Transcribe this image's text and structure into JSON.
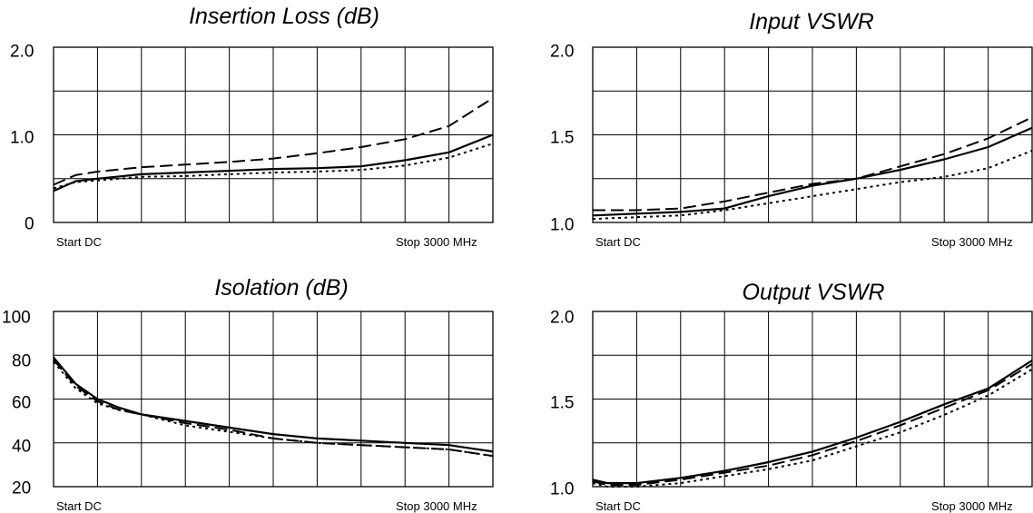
{
  "chart_data": [
    {
      "type": "line",
      "title": "Insertion Loss (dB)",
      "xlabel_start": "Start DC",
      "xlabel_stop": "Stop 3000 MHz",
      "xlim": [
        0,
        3000
      ],
      "ylim": [
        0,
        2.0
      ],
      "ytick_labels": [
        "0",
        "1.0",
        "2.0"
      ],
      "ytick_values": [
        0,
        1.0,
        2.0
      ],
      "grid": true,
      "series": [
        {
          "style": "solid",
          "points": [
            [
              0,
              0.36
            ],
            [
              150,
              0.47
            ],
            [
              300,
              0.5
            ],
            [
              600,
              0.55
            ],
            [
              900,
              0.57
            ],
            [
              1200,
              0.59
            ],
            [
              1500,
              0.61
            ],
            [
              1800,
              0.62
            ],
            [
              2100,
              0.64
            ],
            [
              2400,
              0.71
            ],
            [
              2700,
              0.8
            ],
            [
              3000,
              1.0
            ]
          ]
        },
        {
          "style": "dashed",
          "points": [
            [
              0,
              0.43
            ],
            [
              150,
              0.54
            ],
            [
              300,
              0.58
            ],
            [
              600,
              0.63
            ],
            [
              900,
              0.66
            ],
            [
              1200,
              0.69
            ],
            [
              1500,
              0.73
            ],
            [
              1800,
              0.79
            ],
            [
              2100,
              0.86
            ],
            [
              2400,
              0.95
            ],
            [
              2700,
              1.1
            ],
            [
              3000,
              1.42
            ]
          ]
        },
        {
          "style": "dotted",
          "points": [
            [
              0,
              0.39
            ],
            [
              150,
              0.46
            ],
            [
              300,
              0.48
            ],
            [
              600,
              0.52
            ],
            [
              900,
              0.53
            ],
            [
              1200,
              0.55
            ],
            [
              1500,
              0.57
            ],
            [
              1800,
              0.58
            ],
            [
              2100,
              0.6
            ],
            [
              2400,
              0.65
            ],
            [
              2700,
              0.74
            ],
            [
              3000,
              0.9
            ]
          ]
        }
      ]
    },
    {
      "type": "line",
      "title": "Input VSWR",
      "xlabel_start": "Start DC",
      "xlabel_stop": "Stop 3000 MHz",
      "xlim": [
        0,
        3000
      ],
      "ylim": [
        1.0,
        2.0
      ],
      "ytick_labels": [
        "1.0",
        "1.5",
        "2.0"
      ],
      "ytick_values": [
        1.0,
        1.5,
        2.0
      ],
      "grid": true,
      "series": [
        {
          "style": "solid",
          "points": [
            [
              0,
              1.04
            ],
            [
              300,
              1.05
            ],
            [
              600,
              1.06
            ],
            [
              900,
              1.08
            ],
            [
              1200,
              1.15
            ],
            [
              1500,
              1.21
            ],
            [
              1800,
              1.25
            ],
            [
              2100,
              1.3
            ],
            [
              2400,
              1.36
            ],
            [
              2700,
              1.43
            ],
            [
              3000,
              1.54
            ]
          ]
        },
        {
          "style": "dashed",
          "points": [
            [
              0,
              1.07
            ],
            [
              300,
              1.07
            ],
            [
              600,
              1.08
            ],
            [
              900,
              1.12
            ],
            [
              1200,
              1.17
            ],
            [
              1500,
              1.22
            ],
            [
              1800,
              1.25
            ],
            [
              2100,
              1.32
            ],
            [
              2400,
              1.39
            ],
            [
              2700,
              1.48
            ],
            [
              3000,
              1.6
            ]
          ]
        },
        {
          "style": "dotted",
          "points": [
            [
              0,
              1.02
            ],
            [
              300,
              1.03
            ],
            [
              600,
              1.04
            ],
            [
              900,
              1.07
            ],
            [
              1200,
              1.11
            ],
            [
              1500,
              1.15
            ],
            [
              1800,
              1.19
            ],
            [
              2100,
              1.23
            ],
            [
              2400,
              1.26
            ],
            [
              2700,
              1.31
            ],
            [
              3000,
              1.41
            ]
          ]
        }
      ]
    },
    {
      "type": "line",
      "title": "Isolation (dB)",
      "xlabel_start": "Start DC",
      "xlabel_stop": "Stop 3000 MHz",
      "xlim": [
        0,
        3000
      ],
      "ylim": [
        20,
        100
      ],
      "ytick_labels": [
        "20",
        "40",
        "60",
        "80",
        "100"
      ],
      "ytick_values": [
        20,
        40,
        60,
        80,
        100
      ],
      "grid": true,
      "series": [
        {
          "style": "solid",
          "points": [
            [
              0,
              79
            ],
            [
              150,
              67
            ],
            [
              300,
              60
            ],
            [
              450,
              56
            ],
            [
              600,
              53
            ],
            [
              900,
              50
            ],
            [
              1200,
              47
            ],
            [
              1500,
              44
            ],
            [
              1800,
              42
            ],
            [
              2100,
              41
            ],
            [
              2400,
              40
            ],
            [
              2700,
              39
            ],
            [
              3000,
              36
            ]
          ]
        },
        {
          "style": "dashed",
          "points": [
            [
              0,
              78
            ],
            [
              150,
              66
            ],
            [
              300,
              59
            ],
            [
              450,
              55
            ],
            [
              600,
              53
            ],
            [
              900,
              49
            ],
            [
              1200,
              46
            ],
            [
              1500,
              42
            ],
            [
              1800,
              40
            ],
            [
              2100,
              39
            ],
            [
              2400,
              38
            ],
            [
              2700,
              37
            ],
            [
              3000,
              34
            ]
          ]
        },
        {
          "style": "dotted",
          "points": [
            [
              0,
              77
            ],
            [
              150,
              65
            ],
            [
              300,
              58
            ],
            [
              450,
              55
            ],
            [
              600,
              53
            ],
            [
              900,
              48
            ],
            [
              1200,
              45
            ],
            [
              1500,
              42
            ],
            [
              1800,
              40
            ],
            [
              2100,
              39
            ],
            [
              2400,
              38
            ],
            [
              2700,
              37
            ],
            [
              3000,
              34
            ]
          ]
        }
      ]
    },
    {
      "type": "line",
      "title": "Output VSWR",
      "xlabel_start": "Start DC",
      "xlabel_stop": "Stop 3000 MHz",
      "xlim": [
        0,
        3000
      ],
      "ylim": [
        1.0,
        2.0
      ],
      "ytick_labels": [
        "1.0",
        "1.5",
        "2.0"
      ],
      "ytick_values": [
        1.0,
        1.5,
        2.0
      ],
      "grid": true,
      "series": [
        {
          "style": "solid",
          "points": [
            [
              0,
              1.04
            ],
            [
              100,
              1.02
            ],
            [
              300,
              1.02
            ],
            [
              600,
              1.05
            ],
            [
              900,
              1.09
            ],
            [
              1200,
              1.14
            ],
            [
              1500,
              1.2
            ],
            [
              1800,
              1.28
            ],
            [
              2100,
              1.37
            ],
            [
              2400,
              1.47
            ],
            [
              2700,
              1.56
            ],
            [
              3000,
              1.72
            ]
          ]
        },
        {
          "style": "dashed",
          "points": [
            [
              0,
              1.03
            ],
            [
              100,
              1.01
            ],
            [
              300,
              1.01
            ],
            [
              600,
              1.04
            ],
            [
              900,
              1.08
            ],
            [
              1200,
              1.12
            ],
            [
              1500,
              1.18
            ],
            [
              1800,
              1.26
            ],
            [
              2100,
              1.35
            ],
            [
              2400,
              1.45
            ],
            [
              2700,
              1.55
            ],
            [
              3000,
              1.7
            ]
          ]
        },
        {
          "style": "dotted",
          "points": [
            [
              0,
              1.02
            ],
            [
              100,
              1.0
            ],
            [
              300,
              1.0
            ],
            [
              600,
              1.02
            ],
            [
              900,
              1.06
            ],
            [
              1200,
              1.1
            ],
            [
              1500,
              1.15
            ],
            [
              1800,
              1.23
            ],
            [
              2100,
              1.31
            ],
            [
              2400,
              1.41
            ],
            [
              2700,
              1.52
            ],
            [
              3000,
              1.67
            ]
          ]
        }
      ]
    }
  ]
}
